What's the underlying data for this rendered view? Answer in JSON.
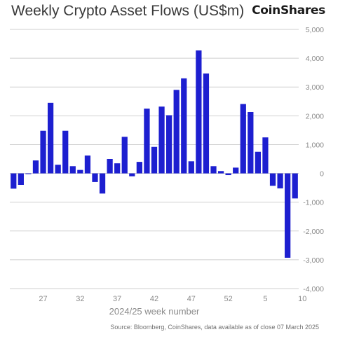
{
  "header": {
    "title": "Weekly Crypto Asset Flows (US$m)",
    "brand": "CoinShares"
  },
  "footer": {
    "source": "Source: Bloomberg, CoinShares, data available as of close 07 March 2025"
  },
  "chart_data": {
    "type": "bar",
    "title": "Weekly Crypto Asset Flows (US$m)",
    "xlabel": "2024/25 week number",
    "ylabel": "",
    "ylim": [
      -4000,
      5000
    ],
    "yticks": [
      5000,
      4000,
      3000,
      2000,
      1000,
      0,
      -1000,
      -2000,
      -3000,
      -4000
    ],
    "ytick_labels": [
      "5,000",
      "4,000",
      "3,000",
      "2,000",
      "1,000",
      "0",
      "-1,000",
      "-2,000",
      "-3,000",
      "-4,000"
    ],
    "xtick_labels": [
      {
        "label": "27",
        "index": 4
      },
      {
        "label": "32",
        "index": 9
      },
      {
        "label": "37",
        "index": 14
      },
      {
        "label": "42",
        "index": 19
      },
      {
        "label": "47",
        "index": 24
      },
      {
        "label": "52",
        "index": 29
      },
      {
        "label": "5",
        "index": 34
      },
      {
        "label": "10",
        "index": 39
      }
    ],
    "grid": "horizontal",
    "legend": "none",
    "color": "#1d1fd0",
    "values": [
      -530,
      -400,
      -20,
      450,
      1480,
      2450,
      300,
      1480,
      250,
      120,
      620,
      -300,
      -700,
      500,
      350,
      1270,
      -100,
      400,
      2250,
      920,
      2320,
      2020,
      2900,
      3300,
      420,
      4270,
      3470,
      250,
      80,
      -60,
      200,
      2410,
      2130,
      750,
      1250,
      -430,
      -520,
      -2930,
      -870
    ]
  }
}
